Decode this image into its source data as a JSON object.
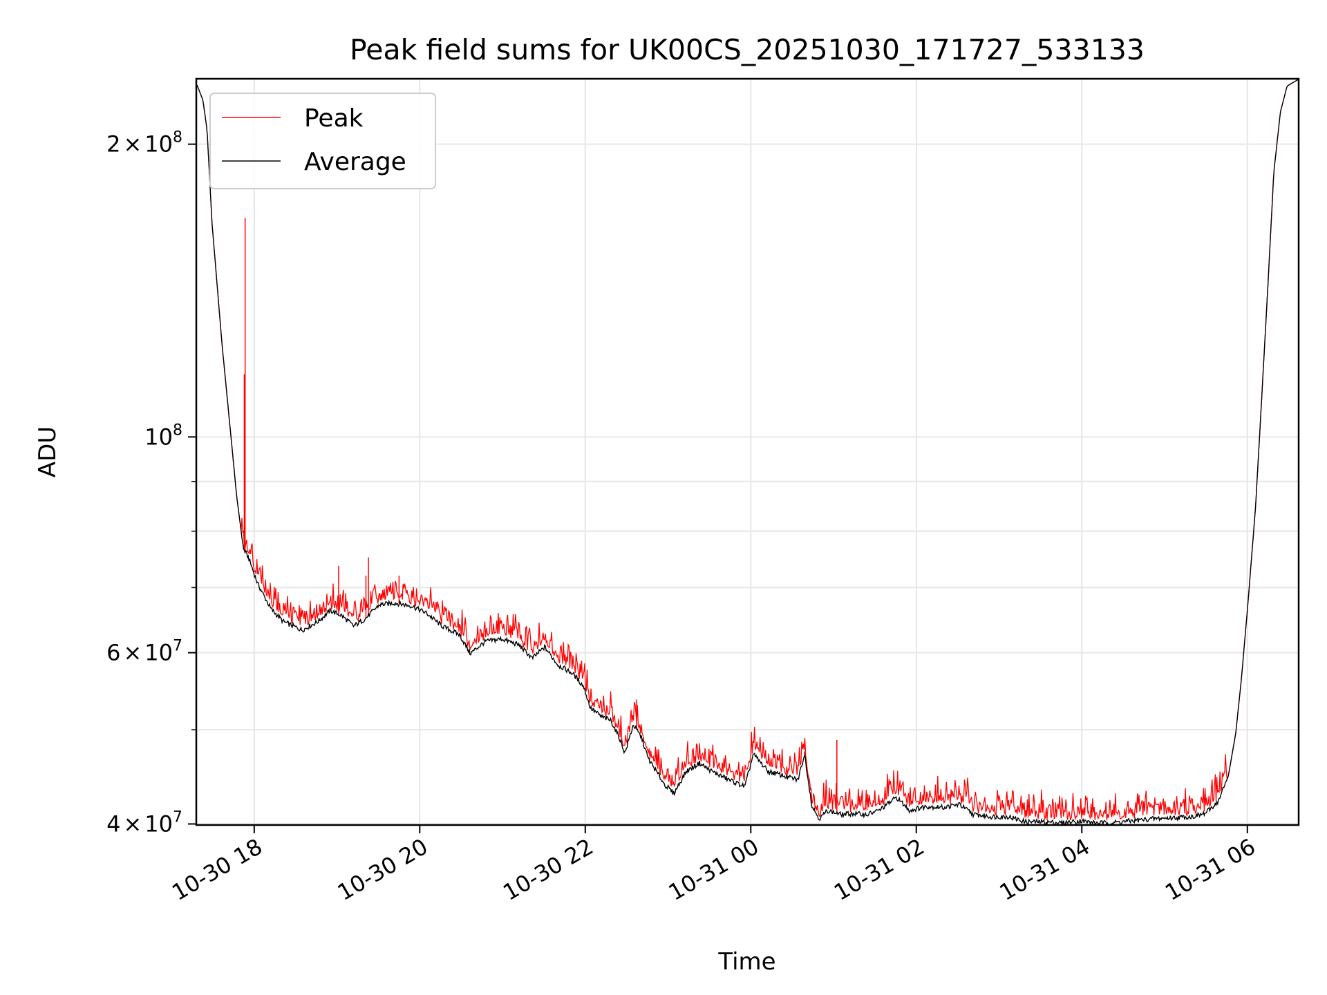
{
  "chart_data": {
    "type": "line",
    "title": "Peak field sums for UK00CS_20251030_171727_533133",
    "xlabel": "Time",
    "ylabel": "ADU",
    "x_units": "hours since 2025-10-30 00:00",
    "xlim": [
      17.3,
      30.62
    ],
    "ylim": [
      39900000,
      233500000
    ],
    "yscale": "log",
    "grid": true,
    "legend_placement": "top-left",
    "x_ticks": [
      {
        "value": 18,
        "label": "10-30 18"
      },
      {
        "value": 20,
        "label": "10-30 20"
      },
      {
        "value": 22,
        "label": "10-30 22"
      },
      {
        "value": 24,
        "label": "10-31 00"
      },
      {
        "value": 26,
        "label": "10-31 02"
      },
      {
        "value": 28,
        "label": "10-31 04"
      },
      {
        "value": 30,
        "label": "10-31 06"
      }
    ],
    "y_ticks": [
      {
        "value": 40000000,
        "mantissa": "4",
        "times": "×",
        "base": "10",
        "exp": "7"
      },
      {
        "value": 60000000,
        "mantissa": "6",
        "times": "×",
        "base": "10",
        "exp": "7"
      },
      {
        "value": 100000000,
        "mantissa": "",
        "times": "",
        "base": "10",
        "exp": "8"
      },
      {
        "value": 200000000,
        "mantissa": "2",
        "times": "×",
        "base": "10",
        "exp": "8"
      }
    ],
    "y_minor_ticks": [
      50000000,
      70000000,
      80000000,
      90000000
    ],
    "series": [
      {
        "name": "Average",
        "color": "#000000",
        "x": [
          17.31,
          17.38,
          17.43,
          17.49,
          17.61,
          17.7,
          17.79,
          17.87,
          17.93,
          18.04,
          18.2,
          18.35,
          18.58,
          18.77,
          18.92,
          19.06,
          19.2,
          19.34,
          19.51,
          19.7,
          19.91,
          20.08,
          20.27,
          20.48,
          20.61,
          20.79,
          20.99,
          21.2,
          21.36,
          21.51,
          21.67,
          21.85,
          21.98,
          22.06,
          22.19,
          22.31,
          22.41,
          22.48,
          22.58,
          22.68,
          22.76,
          22.83,
          22.96,
          23.07,
          23.22,
          23.38,
          23.53,
          23.74,
          23.93,
          24.03,
          24.21,
          24.41,
          24.57,
          24.65,
          24.74,
          24.83,
          24.93,
          25.09,
          25.24,
          25.4,
          25.55,
          25.76,
          25.92,
          26.12,
          26.33,
          26.52,
          26.69,
          26.9,
          27.11,
          27.32,
          27.52,
          27.78,
          27.99,
          28.15,
          28.35,
          28.61,
          28.87,
          29.13,
          29.34,
          29.49,
          29.65,
          29.77,
          29.86,
          29.93,
          30.01,
          30.1,
          30.17,
          30.25,
          30.32,
          30.4,
          30.48,
          30.61
        ],
        "y": [
          230000000,
          222000000,
          207000000,
          166000000,
          124800000,
          104000000,
          86600000,
          76700000,
          75200000,
          70700000,
          66600000,
          64600000,
          63300000,
          64600000,
          66300000,
          65500000,
          63900000,
          65000000,
          67200000,
          67500000,
          67000000,
          65900000,
          63900000,
          62600000,
          59900000,
          61600000,
          62000000,
          61100000,
          59200000,
          60800000,
          58300000,
          57100000,
          55400000,
          52700000,
          51600000,
          51100000,
          49100000,
          47300000,
          50600000,
          49100000,
          46700000,
          45700000,
          43900000,
          43000000,
          45300000,
          46200000,
          45300000,
          44400000,
          43700000,
          47200000,
          45300000,
          44800000,
          44400000,
          47200000,
          41700000,
          40500000,
          41300000,
          40900000,
          41000000,
          40900000,
          41300000,
          42600000,
          41300000,
          41700000,
          41600000,
          41900000,
          40900000,
          40700000,
          40700000,
          40200000,
          40200000,
          40100000,
          40300000,
          40100000,
          40100000,
          40300000,
          40500000,
          40600000,
          40700000,
          41000000,
          42200000,
          44800000,
          49600000,
          56600000,
          67900000,
          84900000,
          108300000,
          143900000,
          187300000,
          216000000,
          229500000,
          233000000
        ]
      },
      {
        "name": "Peak",
        "color": "#ff0000",
        "typical_excess_over_average": 0.03,
        "spikes": [
          {
            "x": 17.88,
            "y": 116000000
          },
          {
            "x": 17.89,
            "y": 168000000
          },
          {
            "x": 19.02,
            "y": 73700000
          },
          {
            "x": 19.35,
            "y": 72000000
          },
          {
            "x": 19.38,
            "y": 75200000
          },
          {
            "x": 19.75,
            "y": 72000000
          },
          {
            "x": 22.62,
            "y": 53700000
          },
          {
            "x": 24.65,
            "y": 47500000
          },
          {
            "x": 25.04,
            "y": 48800000
          }
        ]
      }
    ]
  }
}
